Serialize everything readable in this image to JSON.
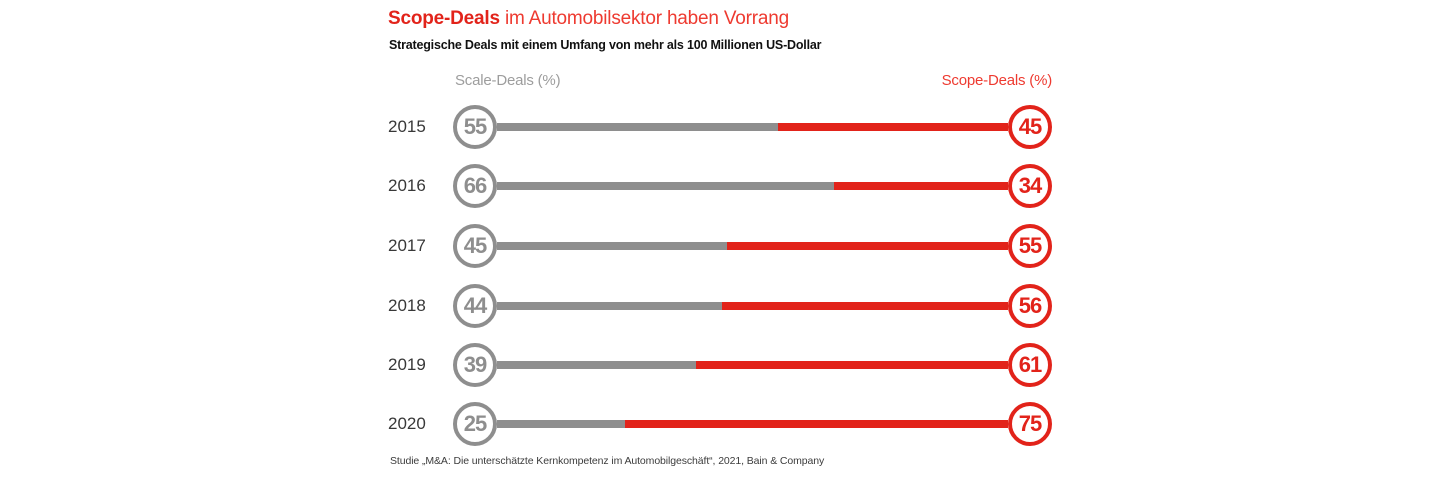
{
  "header": {
    "title_emphasis": "Scope-Deals",
    "title_rest": "im Automobilsektor haben Vorrang",
    "subtitle": "Strategische Deals mit einem Umfang von mehr als 100 Millionen US-Dollar"
  },
  "axis_labels": {
    "left": "Scale-Deals (%)",
    "right": "Scope-Deals (%)"
  },
  "source": "Studie „M&A: Die unterschätzte Kernkompetenz im Automobilgeschäft“, 2021, Bain & Company",
  "colors": {
    "scale_gray": "#8e8e8e",
    "scope_red": "#e2231a",
    "red_text": "#ee3a30",
    "year_text": "#383838",
    "label_gray": "#9d9d9d",
    "source_text": "#3c3c3c",
    "background": "#ffffff"
  },
  "chart_data": {
    "type": "bar",
    "orientation": "horizontal",
    "stacked": true,
    "title": "Scope-Deals im Automobilsektor haben Vorrang",
    "subtitle": "Strategische Deals mit einem Umfang von mehr als 100 Millionen US-Dollar",
    "categories": [
      "2015",
      "2016",
      "2017",
      "2018",
      "2019",
      "2020"
    ],
    "series": [
      {
        "name": "Scale-Deals (%)",
        "color": "#8e8e8e",
        "values": [
          55,
          66,
          45,
          44,
          39,
          25
        ]
      },
      {
        "name": "Scope-Deals (%)",
        "color": "#e2231a",
        "values": [
          45,
          34,
          55,
          56,
          61,
          75
        ]
      }
    ],
    "rows": [
      {
        "year": "2015",
        "scale": 55,
        "scope": 45
      },
      {
        "year": "2016",
        "scale": 66,
        "scope": 34
      },
      {
        "year": "2017",
        "scale": 45,
        "scope": 55
      },
      {
        "year": "2018",
        "scale": 44,
        "scope": 56
      },
      {
        "year": "2019",
        "scale": 39,
        "scope": 61
      },
      {
        "year": "2020",
        "scale": 25,
        "scope": 75
      }
    ],
    "xlim": [
      0,
      100
    ],
    "unit": "%",
    "legend_position": "top",
    "grid": false,
    "source": "Studie „M&A: Die unterschätzte Kernkompetenz im Automobilgeschäft“, 2021, Bain & Company"
  }
}
